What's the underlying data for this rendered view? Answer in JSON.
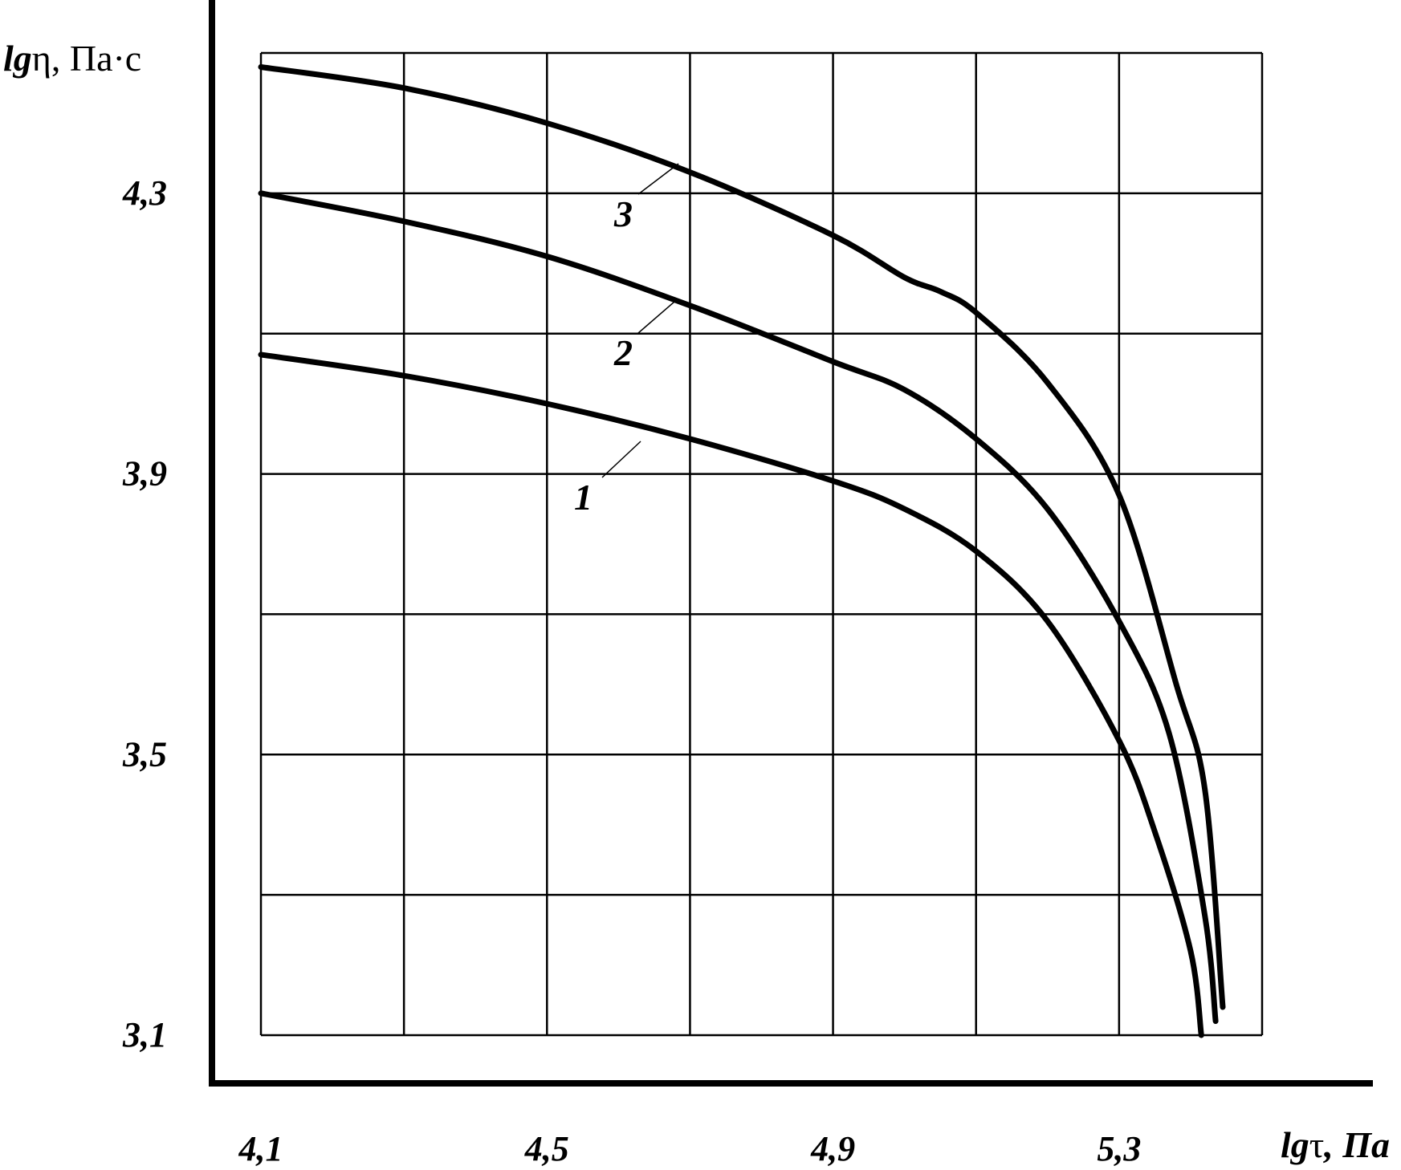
{
  "chart_data": {
    "type": "line",
    "xlabel": "lgτ, Па",
    "xlabel_parts": {
      "italic_prefix": "lg",
      "symbol": "τ",
      "unit": ", Па"
    },
    "ylabel": "lgη, Па·с",
    "ylabel_parts": {
      "italic_prefix": "lg",
      "symbol": "η",
      "unit": ", Па·с"
    },
    "x_ticks": [
      "4,1",
      "4,5",
      "4,9",
      "5,3"
    ],
    "x_tick_values": [
      4.1,
      4.5,
      4.9,
      5.3
    ],
    "y_ticks": [
      "4,3",
      "3,9",
      "3,5",
      "3,1"
    ],
    "y_tick_values": [
      4.3,
      3.9,
      3.5,
      3.1
    ],
    "xlim": [
      4.1,
      5.5
    ],
    "ylim": [
      3.1,
      4.5
    ],
    "grid": true,
    "series": [
      {
        "name": "1",
        "x": [
          4.1,
          4.3,
          4.5,
          4.7,
          4.9,
          5.0,
          5.1,
          5.2,
          5.3,
          5.35,
          5.4,
          5.415
        ],
        "y": [
          4.07,
          4.04,
          4.0,
          3.95,
          3.89,
          3.85,
          3.79,
          3.69,
          3.52,
          3.39,
          3.22,
          3.1
        ]
      },
      {
        "name": "2",
        "x": [
          4.1,
          4.3,
          4.5,
          4.7,
          4.9,
          5.0,
          5.1,
          5.2,
          5.3,
          5.37,
          5.42,
          5.435
        ],
        "y": [
          4.3,
          4.26,
          4.21,
          4.14,
          4.06,
          4.02,
          3.95,
          3.85,
          3.69,
          3.53,
          3.27,
          3.12
        ]
      },
      {
        "name": "3",
        "x": [
          4.1,
          4.3,
          4.5,
          4.7,
          4.9,
          5.0,
          5.05,
          5.1,
          5.2,
          5.3,
          5.38,
          5.42,
          5.445
        ],
        "y": [
          4.48,
          4.45,
          4.4,
          4.33,
          4.24,
          4.18,
          4.16,
          4.13,
          4.03,
          3.87,
          3.6,
          3.45,
          3.14
        ]
      }
    ],
    "curve_labels": [
      {
        "text": "1",
        "series": "1"
      },
      {
        "text": "2",
        "series": "2"
      },
      {
        "text": "3",
        "series": "3"
      }
    ]
  }
}
